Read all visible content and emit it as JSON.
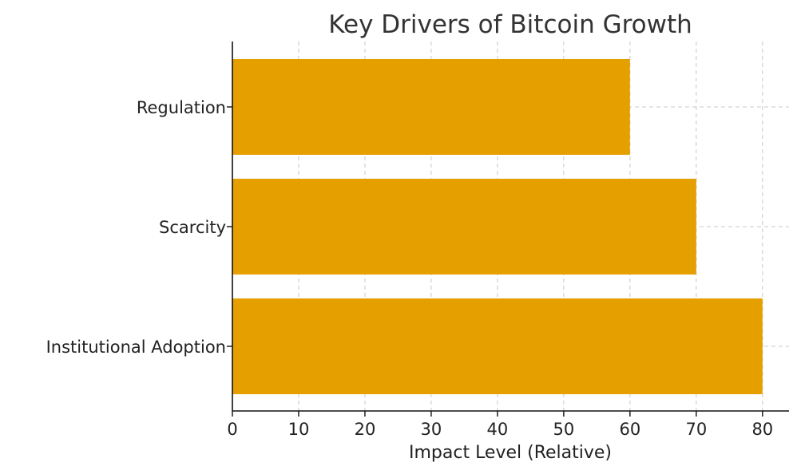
{
  "chart_data": {
    "type": "bar",
    "orientation": "horizontal",
    "title": "Key Drivers of Bitcoin Growth",
    "xlabel": "Impact Level (Relative)",
    "ylabel": "",
    "categories": [
      "Institutional Adoption",
      "Scarcity",
      "Regulation"
    ],
    "values": [
      80,
      70,
      60
    ],
    "xlim": [
      0,
      84
    ],
    "xticks": [
      0,
      10,
      20,
      30,
      40,
      50,
      60,
      70,
      80
    ],
    "grid": true,
    "bar_color": "#E5A000"
  }
}
